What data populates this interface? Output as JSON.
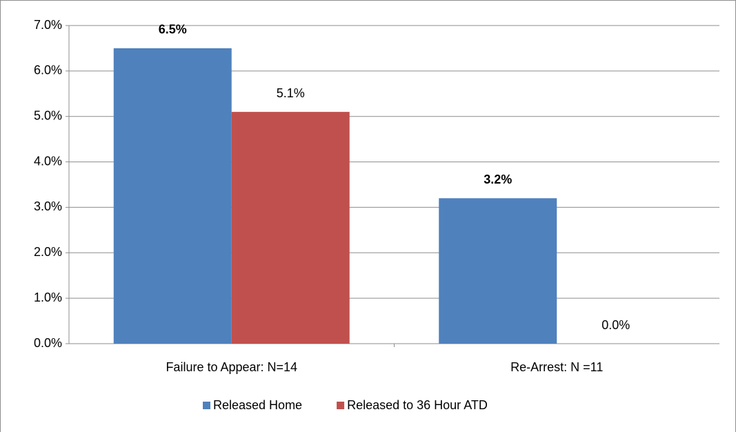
{
  "chart_data": {
    "type": "bar",
    "categories": [
      "Failure to Appear:  N=14",
      "Re-Arrest:  N =11"
    ],
    "series": [
      {
        "name": "Released Home",
        "color": "#4f81bd",
        "values": [
          6.5,
          3.2
        ],
        "value_labels": [
          "6.5%",
          "3.2%"
        ]
      },
      {
        "name": "Released to 36 Hour ATD",
        "color": "#c0504d",
        "values": [
          5.1,
          0
        ],
        "value_labels": [
          "5.1%",
          "0.0%"
        ]
      }
    ],
    "ylim": [
      0,
      7
    ],
    "yticks": [
      {
        "value": 0,
        "label": "0.0%"
      },
      {
        "value": 1,
        "label": "1.0%"
      },
      {
        "value": 2,
        "label": "2.0%"
      },
      {
        "value": 3,
        "label": "3.0%"
      },
      {
        "value": 4,
        "label": "4.0%"
      },
      {
        "value": 5,
        "label": "5.0%"
      },
      {
        "value": 6,
        "label": "6.0%"
      },
      {
        "value": 7,
        "label": "7.0%"
      }
    ],
    "grid": true,
    "legend": "bottom"
  }
}
